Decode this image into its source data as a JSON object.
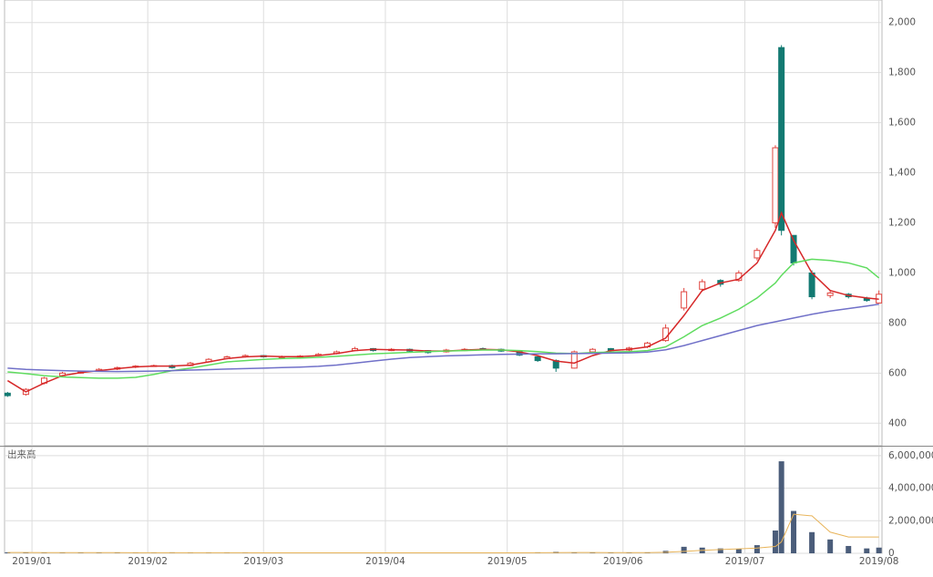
{
  "chart_data": [
    {
      "type": "candlestick",
      "x": [
        0,
        3,
        6,
        9,
        12,
        15,
        18,
        21,
        24,
        27,
        30,
        33,
        36,
        39,
        42,
        45,
        48,
        51,
        54,
        57,
        60,
        63,
        66,
        69,
        72,
        75,
        78,
        81,
        84,
        87,
        90,
        93,
        96,
        99,
        102,
        105,
        108,
        111,
        114,
        117,
        120,
        123,
        126,
        127,
        129,
        132,
        135,
        138,
        141,
        143
      ],
      "open": [
        520,
        515,
        560,
        590,
        600,
        608,
        616,
        624,
        628,
        630,
        630,
        645,
        658,
        665,
        670,
        662,
        664,
        670,
        678,
        690,
        698,
        690,
        695,
        690,
        685,
        690,
        698,
        695,
        685,
        665,
        650,
        620,
        685,
        698,
        692,
        705,
        730,
        860,
        935,
        970,
        970,
        1060,
        1200,
        1900,
        1150,
        1000,
        910,
        915,
        900,
        880
      ],
      "high": [
        525,
        540,
        585,
        605,
        610,
        620,
        626,
        632,
        634,
        634,
        645,
        660,
        670,
        675,
        672,
        670,
        672,
        680,
        690,
        705,
        700,
        700,
        698,
        692,
        697,
        700,
        702,
        698,
        688,
        668,
        655,
        690,
        700,
        700,
        705,
        725,
        795,
        940,
        975,
        975,
        1010,
        1100,
        1510,
        1910,
        1150,
        1010,
        930,
        920,
        905,
        930
      ],
      "low": [
        505,
        510,
        555,
        585,
        598,
        605,
        612,
        620,
        625,
        618,
        628,
        642,
        655,
        662,
        662,
        660,
        662,
        668,
        675,
        688,
        686,
        688,
        685,
        678,
        682,
        688,
        692,
        685,
        668,
        645,
        605,
        618,
        682,
        685,
        688,
        700,
        725,
        850,
        925,
        945,
        965,
        1050,
        1180,
        1150,
        1030,
        895,
        900,
        898,
        885,
        878
      ],
      "close": [
        510,
        535,
        580,
        600,
        605,
        615,
        622,
        628,
        630,
        622,
        640,
        655,
        665,
        670,
        665,
        665,
        668,
        675,
        685,
        698,
        690,
        695,
        688,
        682,
        692,
        695,
        695,
        688,
        672,
        650,
        620,
        685,
        695,
        690,
        700,
        720,
        780,
        925,
        965,
        955,
        1000,
        1090,
        1500,
        1170,
        1040,
        905,
        920,
        905,
        890,
        915
      ],
      "up_color": "#e0443e",
      "down_color": "#137a72",
      "moving_averages": [
        {
          "color": "#d62728",
          "values": [
            570,
            525,
            560,
            590,
            602,
            610,
            618,
            625,
            628,
            628,
            632,
            645,
            658,
            665,
            668,
            666,
            666,
            670,
            678,
            690,
            695,
            693,
            692,
            688,
            688,
            692,
            695,
            693,
            685,
            670,
            648,
            640,
            670,
            690,
            695,
            705,
            740,
            830,
            930,
            960,
            975,
            1040,
            1170,
            1240,
            1130,
            1000,
            930,
            910,
            900,
            895
          ]
        },
        {
          "color": "#5fdc5f",
          "values": [
            605,
            598,
            590,
            585,
            582,
            580,
            580,
            583,
            595,
            610,
            620,
            632,
            645,
            650,
            655,
            658,
            660,
            663,
            667,
            672,
            677,
            680,
            683,
            686,
            688,
            690,
            692,
            692,
            690,
            686,
            680,
            678,
            682,
            684,
            686,
            690,
            705,
            745,
            790,
            820,
            855,
            900,
            960,
            990,
            1040,
            1055,
            1050,
            1040,
            1020,
            980
          ]
        },
        {
          "color": "#7070c8",
          "values": [
            620,
            615,
            612,
            610,
            608,
            607,
            606,
            607,
            608,
            610,
            612,
            614,
            616,
            618,
            620,
            622,
            624,
            627,
            632,
            640,
            648,
            656,
            662,
            666,
            669,
            671,
            673,
            675,
            676,
            677,
            677,
            678,
            679,
            680,
            681,
            684,
            693,
            710,
            730,
            750,
            770,
            790,
            805,
            810,
            820,
            835,
            848,
            858,
            868,
            875
          ]
        }
      ],
      "xlim": [
        -0.5,
        143.5
      ],
      "ylim": [
        310,
        2090
      ],
      "yticks": [
        400,
        600,
        800,
        {
          "value": 1000,
          "label": "1,000"
        },
        {
          "value": 1200,
          "label": "1,200"
        },
        {
          "value": 1400,
          "label": "1,400"
        },
        {
          "value": 1600,
          "label": "1,600"
        },
        {
          "value": 1800,
          "label": "1,800"
        },
        {
          "value": 2000,
          "label": "2,000"
        }
      ],
      "grid": true
    },
    {
      "type": "bar",
      "title": "出来高",
      "x": [
        0,
        3,
        6,
        9,
        12,
        15,
        18,
        21,
        24,
        27,
        30,
        33,
        36,
        39,
        42,
        45,
        48,
        51,
        54,
        57,
        60,
        63,
        66,
        69,
        72,
        75,
        78,
        81,
        84,
        87,
        90,
        93,
        96,
        99,
        102,
        105,
        108,
        111,
        114,
        117,
        120,
        123,
        126,
        127,
        129,
        132,
        135,
        138,
        141,
        143
      ],
      "values": [
        60000,
        40000,
        50000,
        30000,
        30000,
        40000,
        30000,
        25000,
        30000,
        60000,
        30000,
        30000,
        30000,
        25000,
        20000,
        20000,
        20000,
        25000,
        30000,
        30000,
        30000,
        25000,
        25000,
        30000,
        25000,
        25000,
        30000,
        30000,
        40000,
        60000,
        90000,
        50000,
        40000,
        30000,
        30000,
        60000,
        150000,
        400000,
        350000,
        300000,
        280000,
        500000,
        1400000,
        5650000,
        2600000,
        1300000,
        850000,
        450000,
        300000,
        350000
      ],
      "color": "#4b5d7a",
      "line": {
        "color": "#e8b45a",
        "values": [
          50000,
          50000,
          45000,
          45000,
          40000,
          40000,
          40000,
          38000,
          35000,
          35000,
          35000,
          35000,
          33000,
          32000,
          30000,
          28000,
          27000,
          27000,
          27000,
          28000,
          28000,
          28000,
          27000,
          27000,
          27000,
          27000,
          28000,
          28000,
          30000,
          35000,
          45000,
          48000,
          48000,
          45000,
          42000,
          42000,
          60000,
          120000,
          180000,
          230000,
          270000,
          320000,
          420000,
          700000,
          2400000,
          2300000,
          1300000,
          1000000,
          1000000,
          1000000
        ]
      },
      "xlim": [
        -0.5,
        143.5
      ],
      "ylim": [
        0,
        6550000
      ],
      "yticks": [
        0,
        {
          "value": 2000000,
          "label": "2,000,000"
        },
        {
          "value": 4000000,
          "label": "4,000,000"
        },
        {
          "value": 6000000,
          "label": "6,000,000"
        }
      ],
      "xticks": [
        {
          "value": 4,
          "label": "2019/01"
        },
        {
          "value": 23,
          "label": "2019/02"
        },
        {
          "value": 42,
          "label": "2019/03"
        },
        {
          "value": 62,
          "label": "2019/04"
        },
        {
          "value": 82,
          "label": "2019/05"
        },
        {
          "value": 101,
          "label": "2019/06"
        },
        {
          "value": 121,
          "label": "2019/07"
        },
        {
          "value": 143,
          "label": "2019/08"
        }
      ],
      "grid": true
    }
  ]
}
